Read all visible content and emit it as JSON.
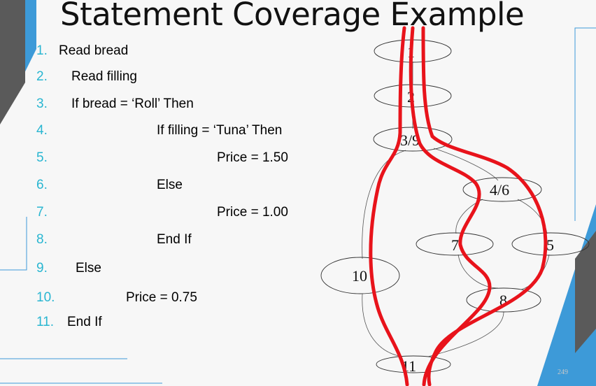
{
  "slide": {
    "title": "Statement Coverage Example",
    "page_number": "249"
  },
  "code_lines": [
    {
      "num": "1.",
      "text": "Read bread"
    },
    {
      "num": "2.",
      "text": "Read filling"
    },
    {
      "num": "3.",
      "text": "If bread = ‘Roll’ Then"
    },
    {
      "num": "4.",
      "text": "If filling = ‘Tuna’ Then"
    },
    {
      "num": "5.",
      "text": "Price = 1.50"
    },
    {
      "num": "6.",
      "text": "Else"
    },
    {
      "num": "7.",
      "text": "Price = 1.00"
    },
    {
      "num": "8.",
      "text": "End If"
    },
    {
      "num": "9.",
      "text": "Else"
    },
    {
      "num": "10.",
      "text": "Price = 0.75"
    },
    {
      "num": "11.",
      "text": "End If"
    }
  ],
  "graph": {
    "nodes": [
      {
        "id": "n1",
        "label": "1"
      },
      {
        "id": "n2",
        "label": "2"
      },
      {
        "id": "n3",
        "label": "3/9"
      },
      {
        "id": "n4",
        "label": "4/6"
      },
      {
        "id": "n7",
        "label": "7"
      },
      {
        "id": "n5",
        "label": "5"
      },
      {
        "id": "n10",
        "label": "10"
      },
      {
        "id": "n8",
        "label": "8"
      },
      {
        "id": "n11",
        "label": "11"
      }
    ],
    "path_color": "#e8131b"
  },
  "colors": {
    "accent_blue": "#3d9ad8",
    "accent_dark": "#5b5b5b",
    "line_number": "#29b6d1"
  }
}
